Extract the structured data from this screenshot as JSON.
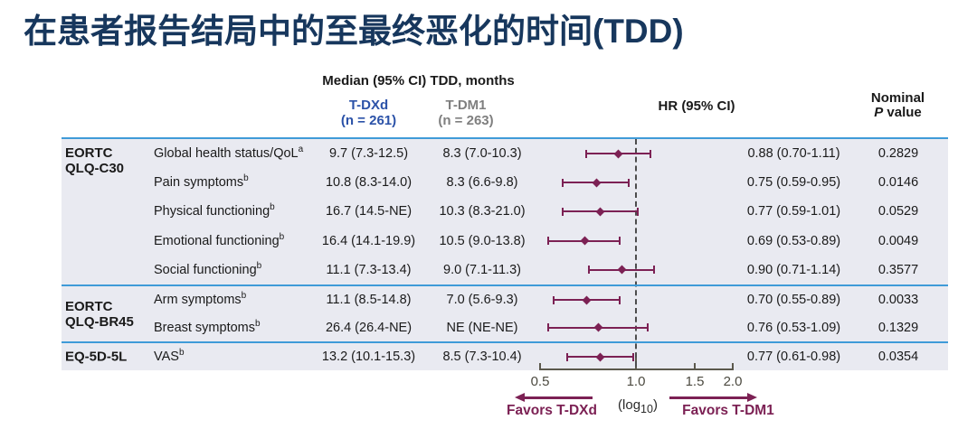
{
  "title": "在患者报告结局中的至最终恶化的时间(TDD)",
  "colors": {
    "title_navy": "#17375D",
    "tdxd_blue": "#2B52A8",
    "tdm1_gray": "#7F7F7F",
    "maroon": "#7C2154",
    "divider_blue": "#3F9BD8",
    "table_bg": "#E9EAF1",
    "axis_gray": "#5B584C",
    "refline_gray": "#4d4d4d"
  },
  "header": {
    "median_label": "Median (95% CI) TDD, months",
    "tdxd_name": "T-DXd",
    "tdxd_n": "(n = 261)",
    "tdm1_name": "T-DM1",
    "tdm1_n": "(n = 263)",
    "hr_label": "HR (95% CI)",
    "pvalue_line1": "Nominal",
    "pvalue_p_italic": "P",
    "pvalue_rest": " value"
  },
  "axis": {
    "tick_labels": [
      "0.5",
      "1.0",
      "1.5",
      "2.0"
    ],
    "log_open": "(log",
    "log_sub": "10",
    "log_close": ")",
    "favors_left": "Favors T-DXd",
    "favors_right": "Favors T-DM1"
  },
  "chart_data": {
    "type": "forest",
    "x_scale": "log10",
    "x_ticks": [
      0.5,
      1.0,
      1.5,
      2.0
    ],
    "reference_line": 1.0,
    "xlim": [
      0.45,
      2.15
    ],
    "legend_note": "HR < 1 favors T-DXd; HR > 1 favors T-DM1",
    "groups": [
      {
        "group_line1": "EORTC",
        "group_line2": "QLQ-C30",
        "rows": [
          {
            "measure": "Global health status/QoL",
            "sup": "a",
            "tdxd": "9.7 (7.3-12.5)",
            "tdm1": "8.3 (7.0-10.3)",
            "hr": 0.88,
            "ci_low": 0.7,
            "ci_high": 1.11,
            "hr_text": "0.88 (0.70-1.11)",
            "p": "0.2829"
          },
          {
            "measure": "Pain symptoms",
            "sup": "b",
            "tdxd": "10.8 (8.3-14.0)",
            "tdm1": "8.3 (6.6-9.8)",
            "hr": 0.75,
            "ci_low": 0.59,
            "ci_high": 0.95,
            "hr_text": "0.75 (0.59-0.95)",
            "p": "0.0146"
          },
          {
            "measure": "Physical functioning",
            "sup": "b",
            "tdxd": "16.7 (14.5-NE)",
            "tdm1": "10.3 (8.3-21.0)",
            "hr": 0.77,
            "ci_low": 0.59,
            "ci_high": 1.01,
            "hr_text": "0.77 (0.59-1.01)",
            "p": "0.0529"
          },
          {
            "measure": "Emotional functioning",
            "sup": "b",
            "tdxd": "16.4 (14.1-19.9)",
            "tdm1": "10.5 (9.0-13.8)",
            "hr": 0.69,
            "ci_low": 0.53,
            "ci_high": 0.89,
            "hr_text": "0.69 (0.53-0.89)",
            "p": "0.0049"
          },
          {
            "measure": "Social functioning",
            "sup": "b",
            "tdxd": "11.1 (7.3-13.4)",
            "tdm1": "9.0 (7.1-11.3)",
            "hr": 0.9,
            "ci_low": 0.71,
            "ci_high": 1.14,
            "hr_text": "0.90 (0.71-1.14)",
            "p": "0.3577"
          }
        ]
      },
      {
        "group_line1": "EORTC",
        "group_line2": "QLQ-BR45",
        "rows": [
          {
            "measure": "Arm symptoms",
            "sup": "b",
            "tdxd": "11.1 (8.5-14.8)",
            "tdm1": "7.0 (5.6-9.3)",
            "hr": 0.7,
            "ci_low": 0.55,
            "ci_high": 0.89,
            "hr_text": "0.70 (0.55-0.89)",
            "p": "0.0033"
          },
          {
            "measure": "Breast symptoms",
            "sup": "b",
            "tdxd": "26.4 (26.4-NE)",
            "tdm1": "NE (NE-NE)",
            "hr": 0.76,
            "ci_low": 0.53,
            "ci_high": 1.09,
            "hr_text": "0.76 (0.53-1.09)",
            "p": "0.1329"
          }
        ]
      },
      {
        "group_line1": "EQ-5D-5L",
        "group_line2": "",
        "rows": [
          {
            "measure": "VAS",
            "sup": "b",
            "tdxd": "13.2 (10.1-15.3)",
            "tdm1": "8.5 (7.3-10.4)",
            "hr": 0.77,
            "ci_low": 0.61,
            "ci_high": 0.98,
            "hr_text": "0.77 (0.61-0.98)",
            "p": "0.0354"
          }
        ]
      }
    ]
  }
}
